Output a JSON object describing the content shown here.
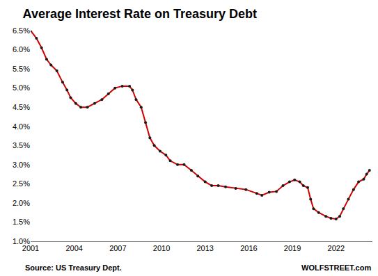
{
  "chart_data": {
    "type": "line",
    "title": "Average Interest Rate on Treasury Debt",
    "annotations": [
      "Source: US Treasury Dept.",
      "WOLFSTREET.com"
    ],
    "x": [
      2001.0,
      2001.4,
      2001.75,
      2002.1,
      2002.4,
      2002.8,
      2003.2,
      2003.5,
      2003.75,
      2004.1,
      2004.45,
      2004.9,
      2005.4,
      2005.9,
      2006.35,
      2006.8,
      2007.3,
      2007.8,
      2008.0,
      2008.25,
      2008.6,
      2008.9,
      2009.2,
      2009.5,
      2009.9,
      2010.3,
      2010.6,
      2011.1,
      2011.55,
      2012.05,
      2012.5,
      2013.0,
      2013.45,
      2013.9,
      2014.4,
      2015.1,
      2015.8,
      2016.55,
      2016.9,
      2017.4,
      2017.9,
      2018.35,
      2018.8,
      2019.15,
      2019.5,
      2019.75,
      2020.05,
      2020.25,
      2020.45,
      2020.8,
      2021.3,
      2021.65,
      2022.0,
      2022.25,
      2022.5,
      2022.85,
      2023.2,
      2023.55,
      2023.9,
      2024.1,
      2024.3
    ],
    "values": [
      6.5,
      6.3,
      6.05,
      5.75,
      5.6,
      5.45,
      5.15,
      4.95,
      4.75,
      4.6,
      4.5,
      4.5,
      4.6,
      4.7,
      4.85,
      5.0,
      5.05,
      5.05,
      4.95,
      4.7,
      4.5,
      4.1,
      3.7,
      3.5,
      3.35,
      3.25,
      3.1,
      3.0,
      3.0,
      2.85,
      2.7,
      2.55,
      2.45,
      2.45,
      2.42,
      2.38,
      2.35,
      2.25,
      2.2,
      2.28,
      2.3,
      2.45,
      2.55,
      2.6,
      2.55,
      2.45,
      2.4,
      2.1,
      1.85,
      1.75,
      1.65,
      1.6,
      1.58,
      1.65,
      1.85,
      2.1,
      2.35,
      2.55,
      2.62,
      2.75,
      2.85
    ],
    "color": "#d00000",
    "marker": "circle",
    "xlim": [
      2001,
      2024.5
    ],
    "xticks": [
      2001,
      2004,
      2007,
      2010,
      2013,
      2016,
      2019,
      2022
    ],
    "ylim": [
      1.0,
      6.5
    ],
    "yticks": [
      {
        "value": 1.0,
        "label": "1.0%"
      },
      {
        "value": 1.5,
        "label": "1.5%"
      },
      {
        "value": 2.0,
        "label": "2.0%"
      },
      {
        "value": 2.5,
        "label": "2.5%"
      },
      {
        "value": 3.0,
        "label": "3.0%"
      },
      {
        "value": 3.5,
        "label": "3.5%"
      },
      {
        "value": 4.0,
        "label": "4.0%"
      },
      {
        "value": 4.5,
        "label": "4.5%"
      },
      {
        "value": 5.0,
        "label": "5.0%"
      },
      {
        "value": 5.5,
        "label": "5.5%"
      },
      {
        "value": 6.0,
        "label": "6.0%"
      },
      {
        "value": 6.5,
        "label": "6.5%"
      }
    ],
    "grid": false
  }
}
